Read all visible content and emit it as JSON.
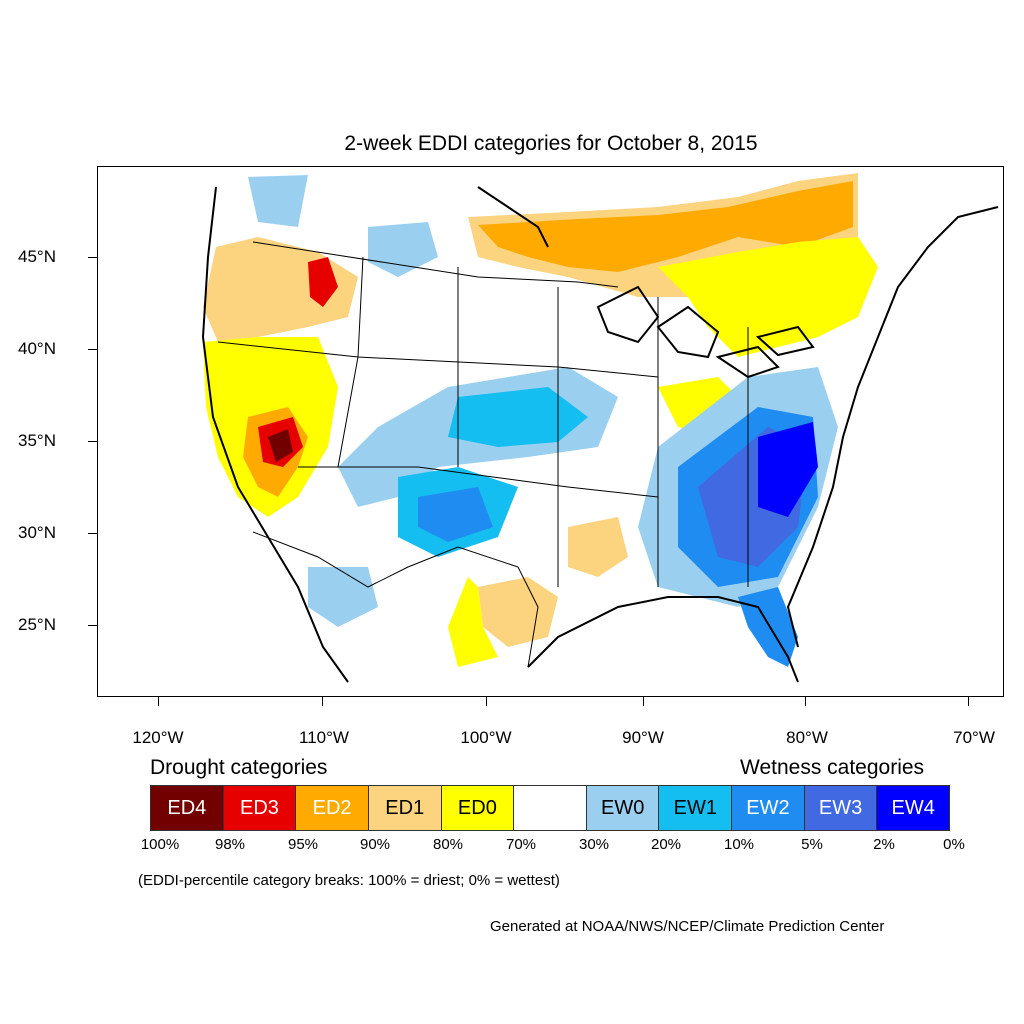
{
  "title": "2-week EDDI categories for October 8, 2015",
  "latitude_labels": [
    "45°N",
    "40°N",
    "35°N",
    "30°N",
    "25°N"
  ],
  "longitude_labels": [
    "120°W",
    "110°W",
    "100°W",
    "90°W",
    "80°W",
    "70°W"
  ],
  "legend": {
    "drought_heading": "Drought categories",
    "wetness_heading": "Wetness categories",
    "categories": [
      {
        "label": "ED4",
        "color": "#730000",
        "text_color": "#ffffff"
      },
      {
        "label": "ED3",
        "color": "#e60000",
        "text_color": "#ffffff"
      },
      {
        "label": "ED2",
        "color": "#ffaa00",
        "text_color": "#ffffff"
      },
      {
        "label": "ED1",
        "color": "#fcd37f",
        "text_color": "#000000"
      },
      {
        "label": "ED0",
        "color": "#ffff00",
        "text_color": "#000000"
      },
      {
        "label": "",
        "color": "#ffffff",
        "text_color": "#000000"
      },
      {
        "label": "EW0",
        "color": "#9bcff0",
        "text_color": "#000000"
      },
      {
        "label": "EW1",
        "color": "#14bef0",
        "text_color": "#000000"
      },
      {
        "label": "EW2",
        "color": "#1e8cf0",
        "text_color": "#ffffff"
      },
      {
        "label": "EW3",
        "color": "#4169e1",
        "text_color": "#ffffff"
      },
      {
        "label": "EW4",
        "color": "#0000ff",
        "text_color": "#ffffff"
      }
    ],
    "percentiles": [
      "100%",
      "98%",
      "95%",
      "90%",
      "80%",
      "70%",
      "30%",
      "20%",
      "10%",
      "5%",
      "2%",
      "0%"
    ]
  },
  "note": "(EDDI-percentile category breaks: 100% = driest; 0% = wettest)",
  "credit": "Generated at NOAA/NWS/NCEP/Climate Prediction Center"
}
